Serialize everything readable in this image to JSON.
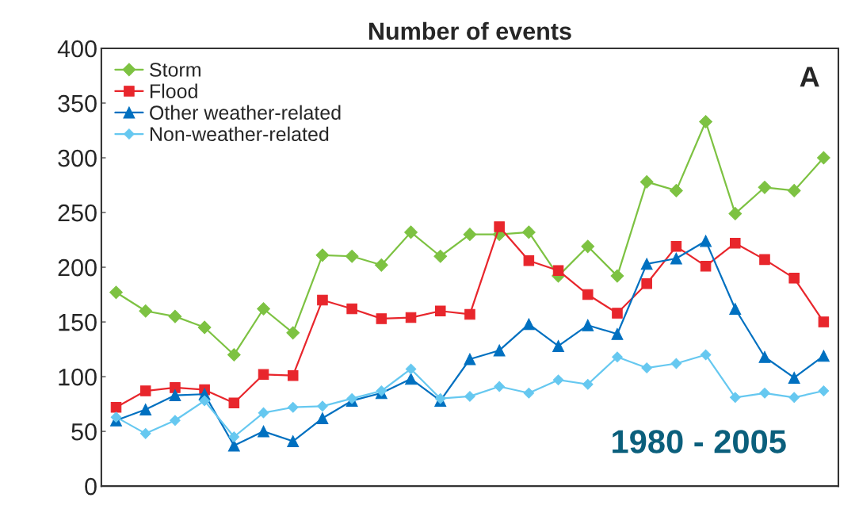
{
  "chart_data": {
    "type": "line",
    "title": "Number of events",
    "categories": [
      null,
      null,
      null,
      null,
      null,
      null,
      null,
      null,
      null,
      null,
      null,
      null,
      null,
      null,
      null,
      null,
      null,
      null,
      null,
      null,
      null,
      null,
      null,
      null,
      null
    ],
    "series": [
      {
        "name": "Storm",
        "color": "#7dc242",
        "marker": "diamond",
        "values": [
          177,
          160,
          155,
          145,
          120,
          162,
          140,
          211,
          210,
          202,
          232,
          210,
          230,
          230,
          232,
          192,
          219,
          192,
          278,
          270,
          333,
          249,
          273,
          270,
          300
        ]
      },
      {
        "name": "Flood",
        "color": "#e8262c",
        "marker": "square",
        "values": [
          72,
          87,
          90,
          88,
          76,
          102,
          101,
          170,
          162,
          153,
          154,
          160,
          157,
          237,
          206,
          197,
          175,
          158,
          185,
          219,
          201,
          222,
          207,
          190,
          150
        ]
      },
      {
        "name": "Other weather-related",
        "color": "#0070c0",
        "marker": "triangle",
        "values": [
          60,
          70,
          83,
          84,
          37,
          50,
          41,
          62,
          78,
          85,
          98,
          78,
          116,
          124,
          148,
          128,
          147,
          139,
          203,
          208,
          224,
          162,
          118,
          99,
          119
        ]
      },
      {
        "name": "Non-weather-related",
        "color": "#66c8f0",
        "marker": "diamond",
        "values": [
          63,
          48,
          60,
          78,
          45,
          67,
          72,
          73,
          80,
          87,
          107,
          80,
          82,
          91,
          85,
          97,
          93,
          118,
          108,
          112,
          120,
          81,
          85,
          81,
          87
        ]
      }
    ],
    "ylim": [
      0,
      400
    ],
    "yticks": [
      0,
      50,
      100,
      150,
      200,
      250,
      300,
      350,
      400
    ],
    "tick_labels": "y",
    "legend": "top left",
    "annotations": [
      "A",
      "1980 - 2005"
    ]
  }
}
